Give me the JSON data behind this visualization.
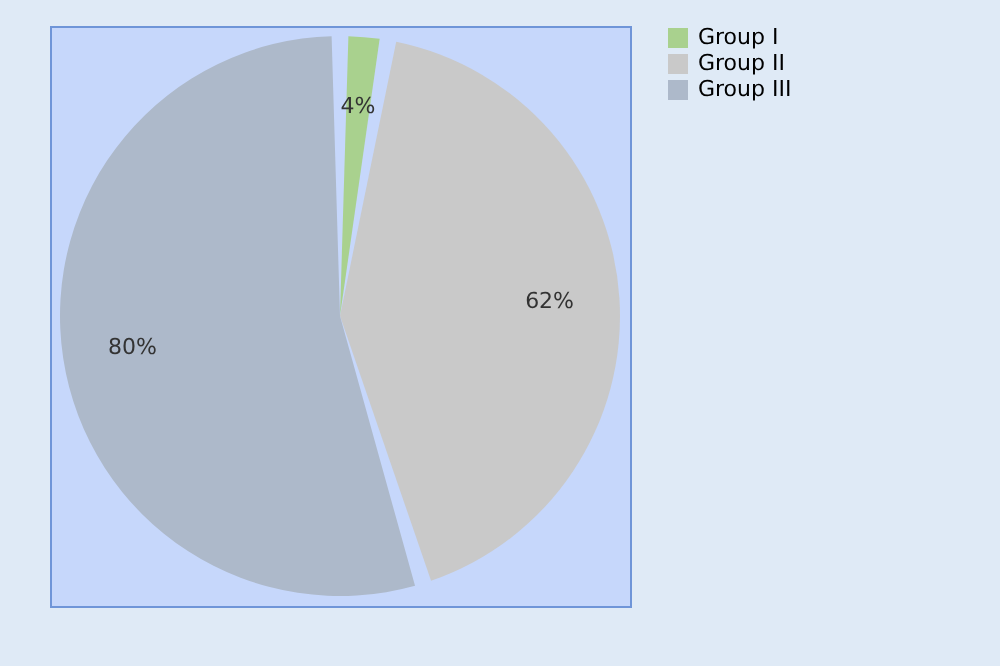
{
  "chart_data": {
    "type": "pie",
    "categories": [
      "Group I",
      "Group II",
      "Group III"
    ],
    "values": [
      4,
      62,
      80
    ],
    "colors": [
      "#a9d18e",
      "#c9c9c9",
      "#adb9ca"
    ],
    "value_labels": [
      "4%",
      "62%",
      "80%"
    ],
    "legend": "right"
  }
}
